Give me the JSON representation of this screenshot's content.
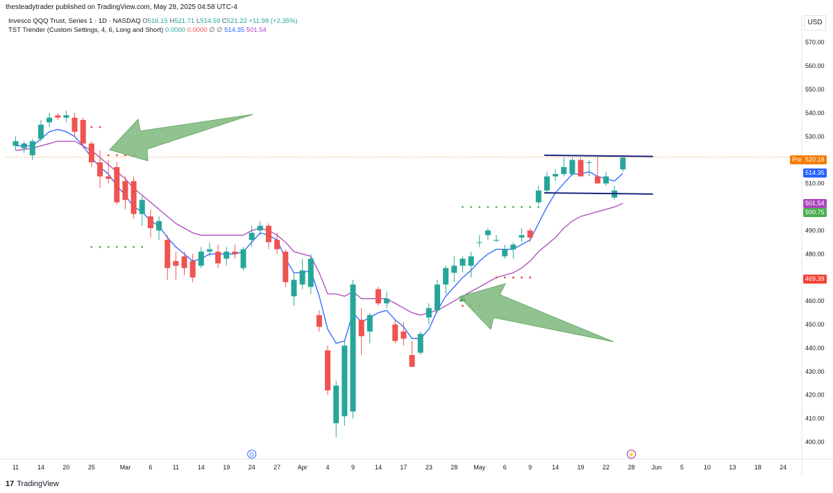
{
  "header": {
    "published_by": "thesteadytrader published on TradingView.com, May 28, 2025 04:58 UTC-4"
  },
  "legend": {
    "symbol": "Invesco QQQ Trust, Series 1 · 1D · NASDAQ",
    "o_label": "O",
    "o_value": "516.15",
    "h_label": "H",
    "h_value": "521.71",
    "l_label": "L",
    "l_value": "514.59",
    "c_label": "C",
    "c_value": "521.22",
    "change": "+11.98 (+2.35%)",
    "indicator": "TST Trender (Custom Settings, 4, 6, Long and Short)",
    "ind_v1": "0.0000",
    "ind_v2": "0.0000",
    "ind_v3": "∅",
    "ind_v4": "∅",
    "ind_v5": "514.35",
    "ind_v6": "501.54"
  },
  "currency": "USD",
  "footer": {
    "brand": "TradingView",
    "logo_glyph": "17"
  },
  "colors": {
    "up": "#26a69a",
    "down": "#ef5350",
    "fast_line": "#2962ff",
    "slow_line": "#ab47bc",
    "long_dots": "#4caf50",
    "short_dots": "#f44336",
    "arrows": "#7cb97c",
    "range_lines": "#1a237e",
    "price_line": "#f57c00"
  },
  "chart_data": {
    "type": "candlestick",
    "ylim": [
      395,
      578
    ],
    "y_ticks": [
      400,
      410,
      420,
      430,
      440,
      450,
      460,
      470,
      480,
      490,
      500,
      510,
      520,
      530,
      540,
      550,
      560,
      570
    ],
    "y_tick_labels": [
      "400.00",
      "410.00",
      "420.00",
      "430.00",
      "440.00",
      "450.00",
      "460.00",
      "470.00",
      "480.00",
      "490.00",
      "500.00",
      "510.00",
      "520.00",
      "530.00",
      "540.00",
      "550.00",
      "560.00",
      "570.00"
    ],
    "x_ticks": [
      {
        "label": "11",
        "i": 0
      },
      {
        "label": "14",
        "i": 3
      },
      {
        "label": "20",
        "i": 6
      },
      {
        "label": "25",
        "i": 9
      },
      {
        "label": "Mar",
        "i": 13
      },
      {
        "label": "6",
        "i": 16
      },
      {
        "label": "11",
        "i": 19
      },
      {
        "label": "14",
        "i": 22
      },
      {
        "label": "19",
        "i": 25
      },
      {
        "label": "24",
        "i": 28
      },
      {
        "label": "27",
        "i": 31
      },
      {
        "label": "Apr",
        "i": 34
      },
      {
        "label": "4",
        "i": 37
      },
      {
        "label": "9",
        "i": 40
      },
      {
        "label": "14",
        "i": 43
      },
      {
        "label": "17",
        "i": 46
      },
      {
        "label": "23",
        "i": 49
      },
      {
        "label": "28",
        "i": 52
      },
      {
        "label": "May",
        "i": 55
      },
      {
        "label": "6",
        "i": 58
      },
      {
        "label": "9",
        "i": 61
      },
      {
        "label": "14",
        "i": 64
      },
      {
        "label": "19",
        "i": 67
      },
      {
        "label": "22",
        "i": 70
      },
      {
        "label": "28",
        "i": 73
      },
      {
        "label": "Jun",
        "i": 76
      },
      {
        "label": "5",
        "i": 79
      },
      {
        "label": "10",
        "i": 82
      },
      {
        "label": "13",
        "i": 85
      },
      {
        "label": "18",
        "i": 88
      },
      {
        "label": "24",
        "i": 91
      }
    ],
    "candles": [
      {
        "i": 0,
        "o": 526,
        "h": 530,
        "l": 524,
        "c": 528
      },
      {
        "i": 1,
        "o": 525,
        "h": 528,
        "l": 523,
        "c": 527
      },
      {
        "i": 2,
        "o": 522,
        "h": 529,
        "l": 520,
        "c": 528
      },
      {
        "i": 3,
        "o": 529,
        "h": 537,
        "l": 528,
        "c": 535
      },
      {
        "i": 4,
        "o": 536,
        "h": 540,
        "l": 534,
        "c": 538
      },
      {
        "i": 5,
        "o": 539,
        "h": 540,
        "l": 537,
        "c": 538
      },
      {
        "i": 6,
        "o": 538,
        "h": 541,
        "l": 536,
        "c": 539
      },
      {
        "i": 7,
        "o": 538,
        "h": 540,
        "l": 530,
        "c": 532
      },
      {
        "i": 8,
        "o": 537,
        "h": 538,
        "l": 525,
        "c": 527
      },
      {
        "i": 9,
        "o": 527,
        "h": 528,
        "l": 517,
        "c": 519
      },
      {
        "i": 10,
        "o": 519,
        "h": 524,
        "l": 508,
        "c": 513
      },
      {
        "i": 11,
        "o": 513,
        "h": 520,
        "l": 510,
        "c": 512
      },
      {
        "i": 12,
        "o": 517,
        "h": 519,
        "l": 501,
        "c": 502
      },
      {
        "i": 13,
        "o": 511,
        "h": 513,
        "l": 499,
        "c": 503
      },
      {
        "i": 14,
        "o": 511,
        "h": 513,
        "l": 495,
        "c": 497
      },
      {
        "i": 15,
        "o": 497,
        "h": 505,
        "l": 492,
        "c": 503
      },
      {
        "i": 16,
        "o": 496,
        "h": 499,
        "l": 487,
        "c": 491
      },
      {
        "i": 17,
        "o": 490,
        "h": 496,
        "l": 486,
        "c": 494
      },
      {
        "i": 18,
        "o": 486,
        "h": 488,
        "l": 469,
        "c": 474
      },
      {
        "i": 19,
        "o": 477,
        "h": 481,
        "l": 469,
        "c": 475
      },
      {
        "i": 20,
        "o": 479,
        "h": 481,
        "l": 471,
        "c": 474
      },
      {
        "i": 21,
        "o": 477,
        "h": 480,
        "l": 468,
        "c": 470
      },
      {
        "i": 22,
        "o": 475,
        "h": 483,
        "l": 474,
        "c": 481
      },
      {
        "i": 23,
        "o": 481,
        "h": 485,
        "l": 479,
        "c": 482
      },
      {
        "i": 24,
        "o": 481,
        "h": 484,
        "l": 474,
        "c": 476
      },
      {
        "i": 25,
        "o": 478,
        "h": 483,
        "l": 475,
        "c": 481
      },
      {
        "i": 26,
        "o": 481,
        "h": 484,
        "l": 478,
        "c": 480
      },
      {
        "i": 27,
        "o": 474,
        "h": 483,
        "l": 473,
        "c": 482
      },
      {
        "i": 28,
        "o": 486,
        "h": 492,
        "l": 483,
        "c": 489
      },
      {
        "i": 29,
        "o": 490,
        "h": 494,
        "l": 488,
        "c": 492
      },
      {
        "i": 30,
        "o": 492,
        "h": 493,
        "l": 482,
        "c": 485
      },
      {
        "i": 31,
        "o": 486,
        "h": 489,
        "l": 480,
        "c": 482
      },
      {
        "i": 32,
        "o": 481,
        "h": 482,
        "l": 466,
        "c": 468
      },
      {
        "i": 33,
        "o": 462,
        "h": 472,
        "l": 458,
        "c": 469
      },
      {
        "i": 34,
        "o": 467,
        "h": 478,
        "l": 465,
        "c": 473
      },
      {
        "i": 35,
        "o": 466,
        "h": 480,
        "l": 463,
        "c": 478
      },
      {
        "i": 36,
        "o": 454,
        "h": 456,
        "l": 447,
        "c": 449
      },
      {
        "i": 37,
        "o": 439,
        "h": 441,
        "l": 420,
        "c": 422
      },
      {
        "i": 38,
        "o": 408,
        "h": 426,
        "l": 402,
        "c": 424
      },
      {
        "i": 39,
        "o": 411,
        "h": 443,
        "l": 407,
        "c": 441
      },
      {
        "i": 40,
        "o": 413,
        "h": 469,
        "l": 410,
        "c": 467
      },
      {
        "i": 41,
        "o": 452,
        "h": 457,
        "l": 437,
        "c": 445
      },
      {
        "i": 42,
        "o": 447,
        "h": 455,
        "l": 442,
        "c": 454
      },
      {
        "i": 43,
        "o": 465,
        "h": 466,
        "l": 458,
        "c": 459
      },
      {
        "i": 44,
        "o": 459,
        "h": 464,
        "l": 457,
        "c": 461
      },
      {
        "i": 45,
        "o": 450,
        "h": 452,
        "l": 442,
        "c": 443
      },
      {
        "i": 46,
        "o": 447,
        "h": 451,
        "l": 441,
        "c": 444
      },
      {
        "i": 47,
        "o": 437,
        "h": 443,
        "l": 432,
        "c": 432
      },
      {
        "i": 48,
        "o": 438,
        "h": 447,
        "l": 437,
        "c": 446
      },
      {
        "i": 49,
        "o": 453,
        "h": 459,
        "l": 450,
        "c": 457
      },
      {
        "i": 50,
        "o": 456,
        "h": 469,
        "l": 455,
        "c": 467
      },
      {
        "i": 51,
        "o": 467,
        "h": 475,
        "l": 463,
        "c": 474
      },
      {
        "i": 52,
        "o": 472,
        "h": 479,
        "l": 468,
        "c": 475
      },
      {
        "i": 53,
        "o": 475,
        "h": 479,
        "l": 472,
        "c": 478
      },
      {
        "i": 54,
        "o": 475,
        "h": 481,
        "l": 470,
        "c": 479
      },
      {
        "i": 55,
        "o": 485,
        "h": 488,
        "l": 483,
        "c": 485
      },
      {
        "i": 56,
        "o": 488,
        "h": 491,
        "l": 486,
        "c": 490
      },
      {
        "i": 57,
        "o": 486,
        "h": 488,
        "l": 485,
        "c": 486
      },
      {
        "i": 58,
        "o": 479,
        "h": 484,
        "l": 478,
        "c": 482
      },
      {
        "i": 59,
        "o": 482,
        "h": 485,
        "l": 478,
        "c": 484
      },
      {
        "i": 60,
        "o": 487,
        "h": 491,
        "l": 485,
        "c": 488
      },
      {
        "i": 61,
        "o": 490,
        "h": 491,
        "l": 485,
        "c": 487
      },
      {
        "i": 62,
        "o": 502,
        "h": 509,
        "l": 501,
        "c": 507
      },
      {
        "i": 63,
        "o": 507,
        "h": 515,
        "l": 506,
        "c": 513
      },
      {
        "i": 64,
        "o": 513,
        "h": 516,
        "l": 511,
        "c": 514
      },
      {
        "i": 65,
        "o": 514,
        "h": 521,
        "l": 513,
        "c": 517
      },
      {
        "i": 66,
        "o": 514,
        "h": 521,
        "l": 513,
        "c": 520
      },
      {
        "i": 67,
        "o": 520,
        "h": 521,
        "l": 513,
        "c": 513
      },
      {
        "i": 68,
        "o": 519,
        "h": 520,
        "l": 513,
        "c": 519
      },
      {
        "i": 69,
        "o": 513,
        "h": 522,
        "l": 510,
        "c": 510
      },
      {
        "i": 70,
        "o": 510,
        "h": 515,
        "l": 509,
        "c": 513
      },
      {
        "i": 71,
        "o": 504,
        "h": 509,
        "l": 503,
        "c": 507
      },
      {
        "i": 72,
        "o": 516,
        "h": 522,
        "l": 515,
        "c": 521
      }
    ],
    "fast_line": [
      [
        0,
        526
      ],
      [
        2,
        526
      ],
      [
        3,
        529
      ],
      [
        4,
        532
      ],
      [
        5,
        533
      ],
      [
        6,
        532
      ],
      [
        7,
        530
      ],
      [
        8,
        526
      ],
      [
        9,
        521
      ],
      [
        10,
        517
      ],
      [
        11,
        514
      ],
      [
        12,
        509
      ],
      [
        13,
        505
      ],
      [
        14,
        500
      ],
      [
        15,
        498
      ],
      [
        16,
        494
      ],
      [
        17,
        492
      ],
      [
        18,
        487
      ],
      [
        19,
        483
      ],
      [
        20,
        480
      ],
      [
        21,
        477
      ],
      [
        22,
        478
      ],
      [
        23,
        480
      ],
      [
        24,
        480
      ],
      [
        25,
        480
      ],
      [
        26,
        480
      ],
      [
        27,
        481
      ],
      [
        28,
        485
      ],
      [
        29,
        489
      ],
      [
        30,
        488
      ],
      [
        31,
        486
      ],
      [
        32,
        478
      ],
      [
        33,
        472
      ],
      [
        34,
        472
      ],
      [
        35,
        473
      ],
      [
        36,
        462
      ],
      [
        37,
        448
      ],
      [
        38,
        442
      ],
      [
        39,
        443
      ],
      [
        40,
        455
      ],
      [
        41,
        451
      ],
      [
        42,
        453
      ],
      [
        43,
        455
      ],
      [
        44,
        456
      ],
      [
        45,
        452
      ],
      [
        46,
        449
      ],
      [
        47,
        444
      ],
      [
        48,
        444
      ],
      [
        49,
        448
      ],
      [
        50,
        456
      ],
      [
        51,
        462
      ],
      [
        52,
        466
      ],
      [
        53,
        470
      ],
      [
        54,
        473
      ],
      [
        55,
        477
      ],
      [
        56,
        480
      ],
      [
        57,
        482
      ],
      [
        58,
        482
      ],
      [
        59,
        482
      ],
      [
        60,
        484
      ],
      [
        61,
        486
      ],
      [
        62,
        493
      ],
      [
        63,
        500
      ],
      [
        64,
        506
      ],
      [
        65,
        510
      ],
      [
        66,
        514
      ],
      [
        67,
        514
      ],
      [
        68,
        515
      ],
      [
        69,
        513
      ],
      [
        70,
        512
      ],
      [
        71,
        511
      ],
      [
        72,
        514.35
      ]
    ],
    "slow_line": [
      [
        0,
        524
      ],
      [
        2,
        525
      ],
      [
        3,
        526
      ],
      [
        4,
        527
      ],
      [
        5,
        528
      ],
      [
        6,
        528
      ],
      [
        7,
        528
      ],
      [
        8,
        526
      ],
      [
        9,
        524
      ],
      [
        10,
        521
      ],
      [
        11,
        518
      ],
      [
        12,
        515
      ],
      [
        13,
        512
      ],
      [
        14,
        508
      ],
      [
        15,
        505
      ],
      [
        16,
        502
      ],
      [
        17,
        499
      ],
      [
        18,
        496
      ],
      [
        19,
        493
      ],
      [
        20,
        491
      ],
      [
        21,
        489
      ],
      [
        22,
        488
      ],
      [
        23,
        488
      ],
      [
        24,
        488
      ],
      [
        25,
        488
      ],
      [
        26,
        488
      ],
      [
        27,
        488
      ],
      [
        28,
        490
      ],
      [
        29,
        491
      ],
      [
        30,
        490
      ],
      [
        31,
        488
      ],
      [
        32,
        485
      ],
      [
        33,
        481
      ],
      [
        34,
        480
      ],
      [
        35,
        479
      ],
      [
        36,
        472
      ],
      [
        37,
        463
      ],
      [
        38,
        463
      ],
      [
        39,
        462
      ],
      [
        40,
        464
      ],
      [
        41,
        461
      ],
      [
        42,
        461
      ],
      [
        43,
        461
      ],
      [
        44,
        461
      ],
      [
        45,
        459
      ],
      [
        46,
        457
      ],
      [
        47,
        455
      ],
      [
        48,
        454
      ],
      [
        49,
        455
      ],
      [
        50,
        456
      ],
      [
        51,
        458
      ],
      [
        52,
        460
      ],
      [
        53,
        462
      ],
      [
        54,
        464
      ],
      [
        55,
        466
      ],
      [
        56,
        468
      ],
      [
        57,
        470
      ],
      [
        58,
        471
      ],
      [
        59,
        472
      ],
      [
        60,
        474
      ],
      [
        61,
        477
      ],
      [
        62,
        481
      ],
      [
        63,
        484
      ],
      [
        64,
        487
      ],
      [
        65,
        491
      ],
      [
        66,
        494
      ],
      [
        67,
        496
      ],
      [
        68,
        497
      ],
      [
        69,
        498
      ],
      [
        70,
        499
      ],
      [
        71,
        500
      ],
      [
        72,
        501.54
      ]
    ],
    "long_stop_dots": [
      {
        "from": 9,
        "to": 15,
        "y": 483
      },
      {
        "from": 53,
        "to": 62,
        "y": 500
      }
    ],
    "short_stop_dots": [
      {
        "from": 9,
        "to": 10,
        "y": 534
      },
      {
        "from": 11,
        "to": 14,
        "y": 522
      },
      {
        "from": 53,
        "to": 55,
        "y": 458
      },
      {
        "from": 57,
        "to": 61,
        "y": 470
      }
    ],
    "sell_signal": {
      "i": 9,
      "y": 522
    },
    "buy_signal": {
      "i": 53,
      "y": 461
    },
    "range_top": {
      "from_i": 63,
      "to_i": 75,
      "y1": 522,
      "y2": 521.5
    },
    "range_bottom": {
      "from_i": 63,
      "to_i": 75,
      "y1": 506,
      "y2": 505.5
    },
    "price_line": 521.2,
    "axis_badges": [
      {
        "label": "Pre",
        "value": "520.18",
        "y": 520.18,
        "color": "#f57c00"
      },
      {
        "label": "",
        "value": "514.35",
        "y": 514.35,
        "color": "#2962ff"
      },
      {
        "label": "",
        "value": "501.54",
        "y": 501.54,
        "color": "#ab47bc"
      },
      {
        "label": "",
        "value": "500.75",
        "y": 497.5,
        "color": "#4caf50"
      },
      {
        "label": "",
        "value": "469.39",
        "y": 469.39,
        "color": "#f44336"
      }
    ],
    "events": [
      {
        "glyph": "D",
        "i": 28,
        "color": "#2962ff"
      },
      {
        "glyph": "⚡",
        "i": 73,
        "color": "#9c27b0"
      }
    ]
  }
}
